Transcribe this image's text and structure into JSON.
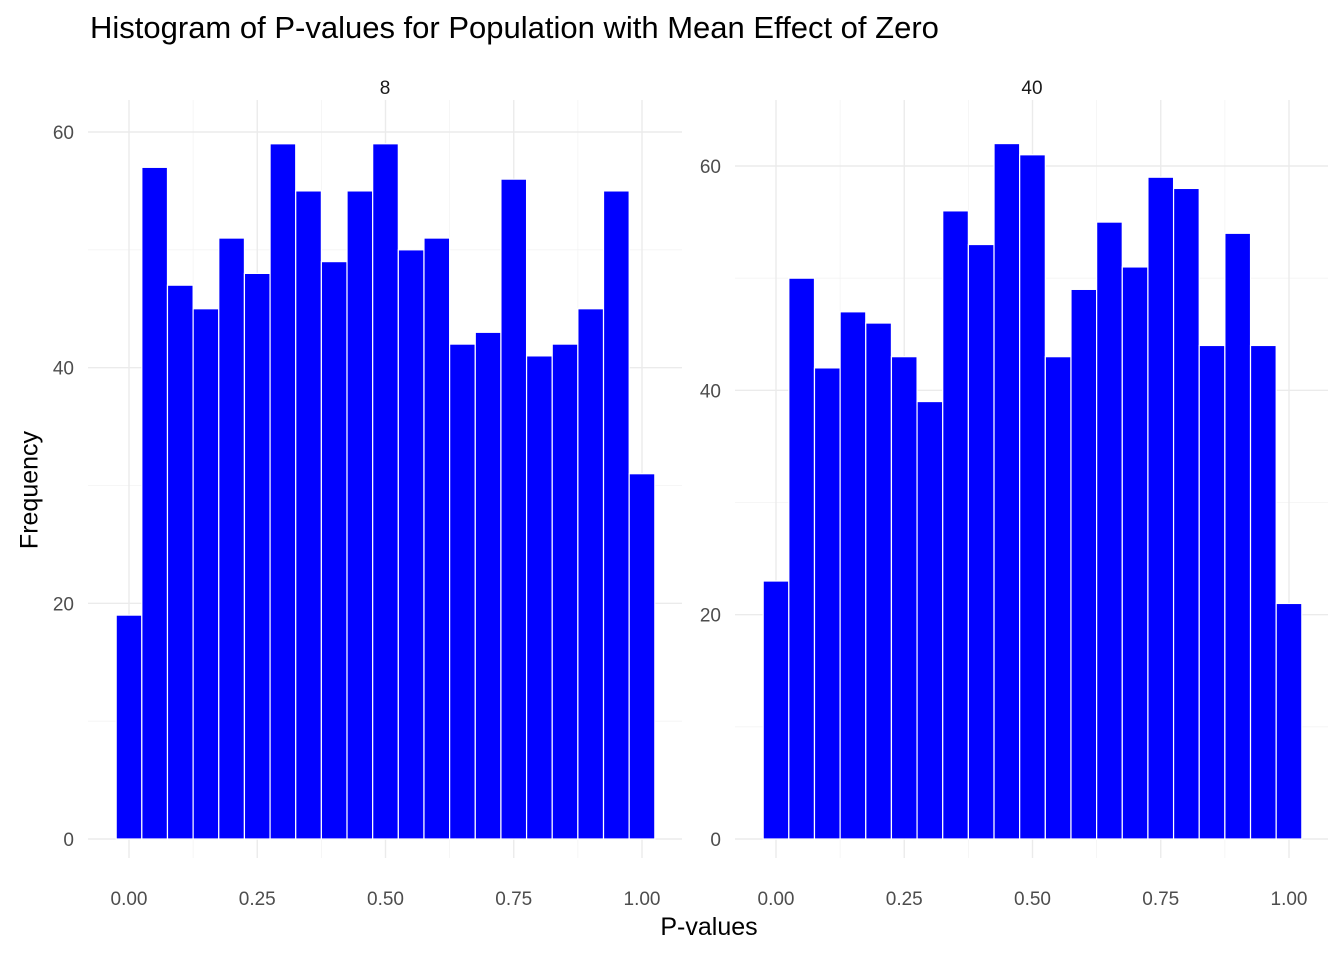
{
  "title": "Histogram of P-values for Population with Mean Effect of Zero",
  "xlabel": "P-values",
  "ylabel": "Frequency",
  "chart_data": [
    {
      "type": "bar",
      "panel": "8",
      "bin_width": 0.05,
      "bin_centers": [
        0.0,
        0.05,
        0.1,
        0.15,
        0.2,
        0.25,
        0.3,
        0.35,
        0.4,
        0.45,
        0.5,
        0.55,
        0.6,
        0.65,
        0.7,
        0.75,
        0.8,
        0.85,
        0.9,
        0.95,
        1.0
      ],
      "values": [
        19,
        57,
        47,
        45,
        51,
        48,
        59,
        55,
        49,
        55,
        59,
        50,
        51,
        42,
        43,
        56,
        41,
        42,
        45,
        55,
        31
      ],
      "x_ticks": [
        "0.00",
        "0.25",
        "0.50",
        "0.75",
        "1.00"
      ],
      "y_ticks": [
        "0",
        "20",
        "40",
        "60"
      ],
      "xlim": [
        -0.025,
        1.025
      ],
      "ylim": [
        0,
        60
      ],
      "bar_color": "#0000FF"
    },
    {
      "type": "bar",
      "panel": "40",
      "bin_width": 0.05,
      "bin_centers": [
        0.0,
        0.05,
        0.1,
        0.15,
        0.2,
        0.25,
        0.3,
        0.35,
        0.4,
        0.45,
        0.5,
        0.55,
        0.6,
        0.65,
        0.7,
        0.75,
        0.8,
        0.85,
        0.9,
        0.95,
        1.0
      ],
      "values": [
        23,
        50,
        42,
        47,
        46,
        43,
        39,
        56,
        53,
        62,
        61,
        43,
        49,
        55,
        51,
        59,
        58,
        44,
        54,
        44,
        21
      ],
      "x_ticks": [
        "0.00",
        "0.25",
        "0.50",
        "0.75",
        "1.00"
      ],
      "y_ticks": [
        "0",
        "20",
        "40",
        "60"
      ],
      "xlim": [
        -0.025,
        1.025
      ],
      "ylim": [
        0,
        60
      ],
      "bar_color": "#0000FF"
    }
  ]
}
